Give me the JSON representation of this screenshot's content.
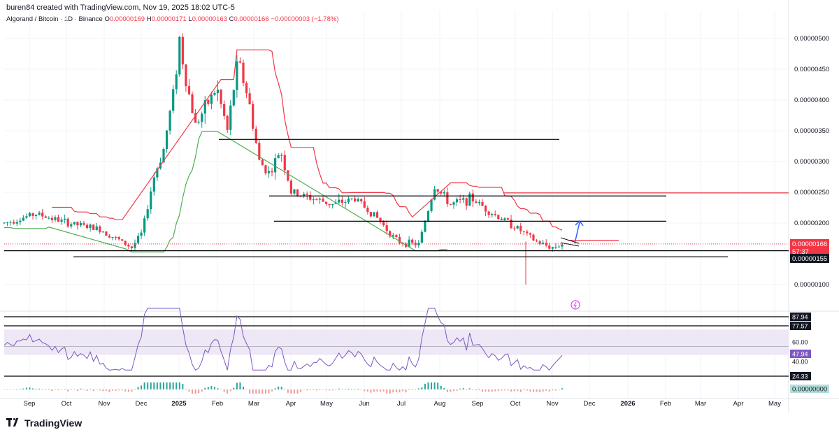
{
  "header": {
    "attribution": "buren84 created with TradingView.com, Nov 19, 2025 18:02 UTC-5"
  },
  "legend": {
    "symbol": "Algorand / Bitcoin · 1D · Binance",
    "o_label": "O",
    "o_value": "0.00000169",
    "h_label": "H",
    "h_value": "0.00000171",
    "l_label": "L",
    "l_value": "0.00000163",
    "c_label": "C",
    "c_value": "0.00000166",
    "change": "−0.00000003 (−1.78%)"
  },
  "brand": {
    "name": "TradingView"
  },
  "colors": {
    "up": "#089981",
    "down": "#f23645",
    "supertrend_up": "#4caf50",
    "supertrend_down": "#f23645",
    "rsi": "#7e57c2",
    "rsi_band": "#ede7f6",
    "arrow": "#2962ff",
    "grid": "#f0f3fa"
  },
  "price_axis": [
    "0.00000500",
    "0.00000450",
    "0.00000400",
    "0.00000350",
    "0.00000300",
    "0.00000250",
    "0.00000200",
    "0.00000100"
  ],
  "price_badges": {
    "last_price": "0.00000166",
    "countdown": "57:37",
    "level": "0.00000155"
  },
  "rsi_axis": [
    "87.94",
    "77.57",
    "60.00",
    "47.94",
    "40.00",
    "24.33"
  ],
  "macd_badge": "0.00000000",
  "time_axis": [
    "Sep",
    "Oct",
    "Nov",
    "Dec",
    "2025",
    "Feb",
    "Mar",
    "Apr",
    "May",
    "Jun",
    "Jul",
    "Aug",
    "Sep",
    "Oct",
    "Nov",
    "Dec",
    "2026",
    "Feb",
    "Mar",
    "Apr",
    "May"
  ],
  "chart_data": {
    "type": "candlestick",
    "symbol": "Algorand / Bitcoin",
    "interval": "1D",
    "exchange": "Binance",
    "price_range": [
      8e-07,
      5.2e-06
    ],
    "close_path": [
      {
        "t": 0,
        "p": 2e-06
      },
      {
        "t": 3,
        "p": 2.15e-06
      },
      {
        "t": 6,
        "p": 2e-06
      },
      {
        "t": 9,
        "p": 1.9e-06
      },
      {
        "t": 12,
        "p": 1.6e-06
      },
      {
        "t": 13,
        "p": 1.85e-06
      },
      {
        "t": 14,
        "p": 2.7e-06
      },
      {
        "t": 15,
        "p": 3.2e-06
      },
      {
        "t": 16,
        "p": 4.2e-06
      },
      {
        "t": 16.5,
        "p": 5e-06
      },
      {
        "t": 17,
        "p": 4.4e-06
      },
      {
        "t": 18,
        "p": 3.6e-06
      },
      {
        "t": 19,
        "p": 3.9e-06
      },
      {
        "t": 20,
        "p": 4.2e-06
      },
      {
        "t": 21,
        "p": 3.5e-06
      },
      {
        "t": 22,
        "p": 4.65e-06
      },
      {
        "t": 23,
        "p": 4e-06
      },
      {
        "t": 24,
        "p": 3e-06
      },
      {
        "t": 25,
        "p": 2.8e-06
      },
      {
        "t": 26,
        "p": 3.2e-06
      },
      {
        "t": 27,
        "p": 2.5e-06
      },
      {
        "t": 29,
        "p": 2.4e-06
      },
      {
        "t": 31,
        "p": 2.3e-06
      },
      {
        "t": 33,
        "p": 2.4e-06
      },
      {
        "t": 35,
        "p": 2.1e-06
      },
      {
        "t": 37,
        "p": 1.7e-06
      },
      {
        "t": 39,
        "p": 1.65e-06
      },
      {
        "t": 40.5,
        "p": 2.6e-06
      },
      {
        "t": 42,
        "p": 2.3e-06
      },
      {
        "t": 44,
        "p": 2.4e-06
      },
      {
        "t": 46,
        "p": 2.15e-06
      },
      {
        "t": 48,
        "p": 1.95e-06
      },
      {
        "t": 50,
        "p": 1.7e-06
      },
      {
        "t": 51.5,
        "p": 1.6e-06
      },
      {
        "t": 52.5,
        "p": 1.66e-06
      }
    ],
    "horizontal_levels": [
      {
        "price": 3.36e-06,
        "from": "Jan",
        "to": "Sep",
        "color": "#000000"
      },
      {
        "price": 2.44e-06,
        "from": "Mar",
        "to": "Dec",
        "color": "#000000"
      },
      {
        "price": 2.03e-06,
        "from": "Mar",
        "to": "Dec",
        "color": "#000000"
      },
      {
        "price": 2.49e-06,
        "from": "Sep",
        "to": "May",
        "color": "#f23645"
      },
      {
        "price": 1.72e-06,
        "from": "Nov",
        "to": "Dec",
        "color": "#f23645"
      },
      {
        "price": 1.55e-06,
        "from": "Sep",
        "to": "May",
        "color": "#000000"
      },
      {
        "price": 1.45e-06,
        "from": "Oct",
        "to": "Dec",
        "color": "#000000"
      }
    ],
    "rsi": {
      "levels": [
        87.94,
        77.57,
        24.33
      ],
      "band": [
        40,
        70
      ],
      "current": 47.94
    }
  }
}
